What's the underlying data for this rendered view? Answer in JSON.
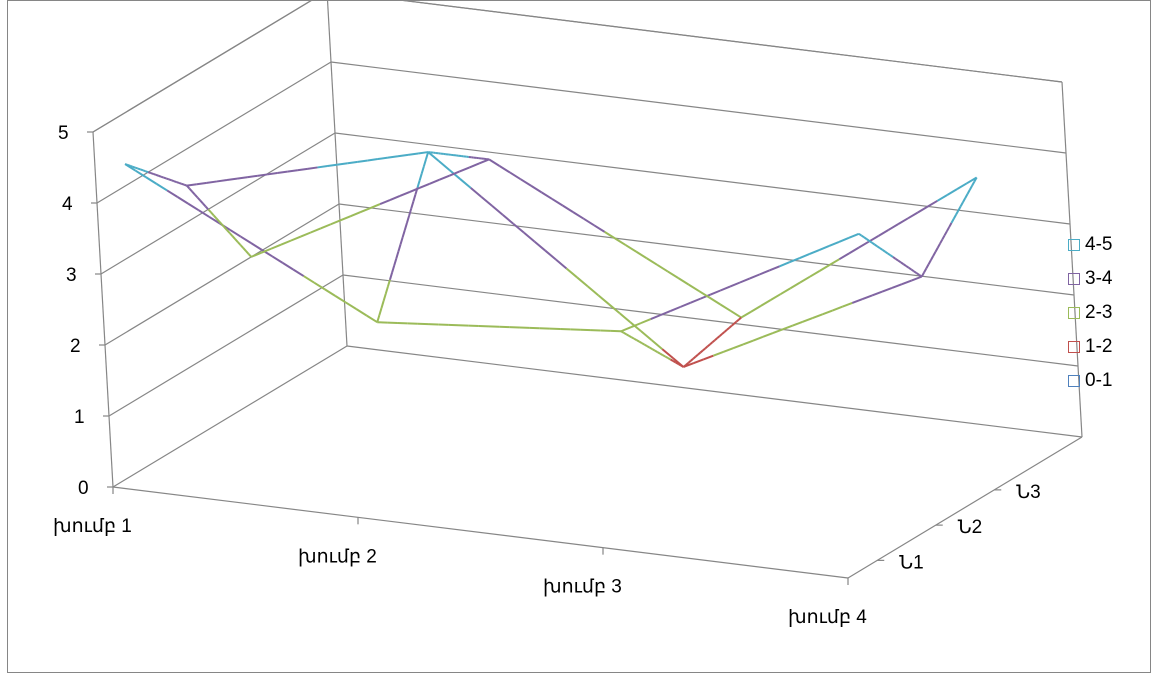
{
  "chart_data": {
    "type": "surface-3d-wireframe",
    "categories": [
      "խումբ 1",
      "խումբ 2",
      "խումբ 3",
      "խումբ 4"
    ],
    "series": [
      {
        "name": "Ն1",
        "values": [
          4.3,
          2.5,
          2.8,
          4.6
        ]
      },
      {
        "name": "Ն2",
        "values": [
          3.5,
          4.4,
          1.8,
          3.5
        ]
      },
      {
        "name": "Ն3",
        "values": [
          2.0,
          3.8,
          2.0,
          4.4
        ]
      }
    ],
    "zlim": [
      0,
      5
    ],
    "z_ticks": [
      "0",
      "1",
      "2",
      "3",
      "4",
      "5"
    ],
    "bands": [
      {
        "label": "4-5",
        "color": "#4bacc6"
      },
      {
        "label": "3-4",
        "color": "#8064a2"
      },
      {
        "label": "2-3",
        "color": "#9bbb59"
      },
      {
        "label": "1-2",
        "color": "#c0504d"
      },
      {
        "label": "0-1",
        "color": "#4f81bd"
      }
    ],
    "legend_position": "right",
    "gridlines": true
  }
}
